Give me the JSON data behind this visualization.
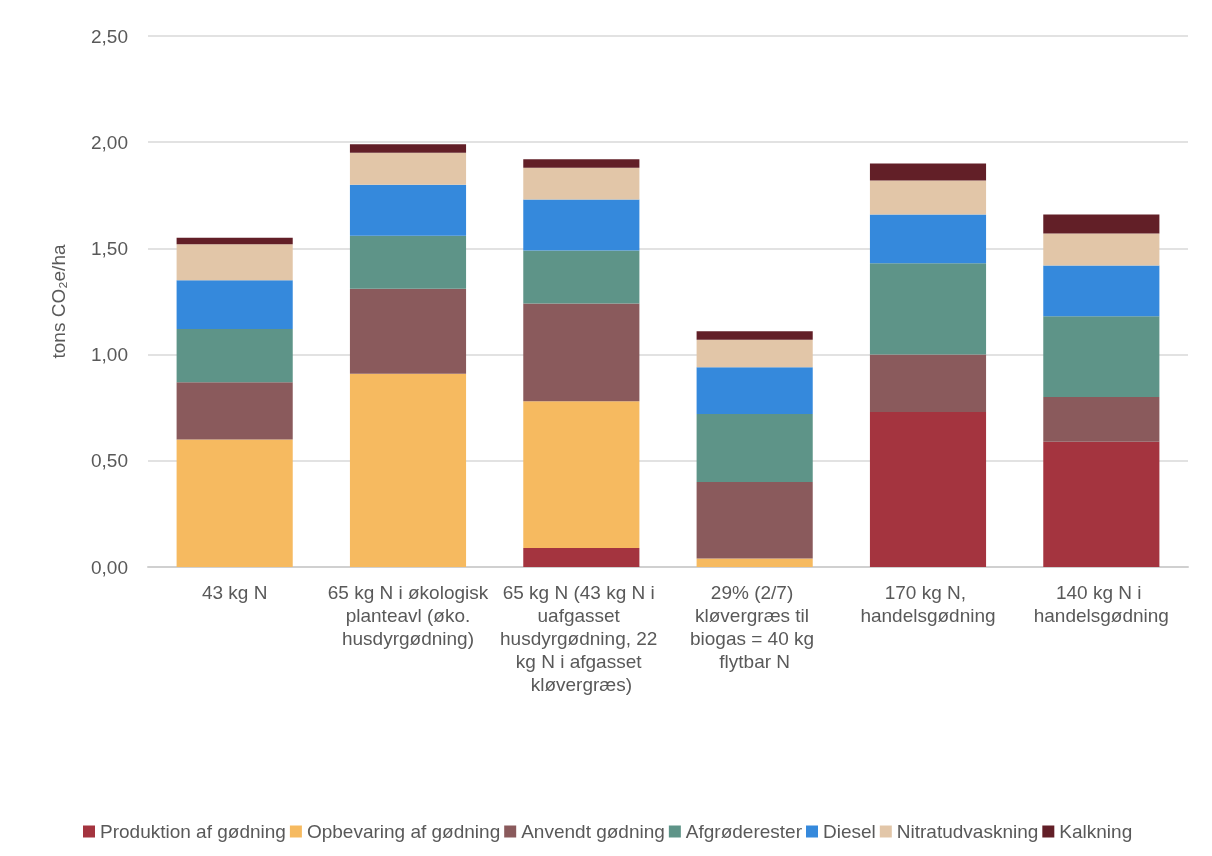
{
  "chart_data": {
    "type": "bar",
    "stacked": true,
    "ylabel": "tons CO₂e/ha",
    "categories": [
      "43 kg N",
      "65 kg N i økologisk planteavl (øko. husdyrgødning)",
      "65 kg N (43 kg N i uafgasset husdyrgødning, 22 kg N i afgasset kløvergræs)",
      "29% (2/7) kløvergræs til biogas = 40 kg flytbar N",
      "170 kg N, handelsgødning",
      "140 kg N i handelsgødning"
    ],
    "series": [
      {
        "name": "Produktion af gødning",
        "color": "#a4343f",
        "values": [
          0,
          0,
          0.09,
          0,
          0.73,
          0.59
        ]
      },
      {
        "name": "Opbevaring af gødning",
        "color": "#f6ba60",
        "values": [
          0.6,
          0.91,
          0.69,
          0.04,
          0,
          0
        ]
      },
      {
        "name": "Anvendt gødning",
        "color": "#8a5a5c",
        "values": [
          0.27,
          0.4,
          0.46,
          0.36,
          0.27,
          0.21
        ]
      },
      {
        "name": "Afgrøderester",
        "color": "#5e9488",
        "values": [
          0.25,
          0.25,
          0.25,
          0.32,
          0.43,
          0.38
        ]
      },
      {
        "name": "Diesel",
        "color": "#3589dc",
        "values": [
          0.23,
          0.24,
          0.24,
          0.22,
          0.23,
          0.24
        ]
      },
      {
        "name": "Nitratudvaskning",
        "color": "#e2c6a8",
        "values": [
          0.17,
          0.15,
          0.15,
          0.13,
          0.16,
          0.15
        ]
      },
      {
        "name": "Kalkning",
        "color": "#621f27",
        "values": [
          0.03,
          0.04,
          0.04,
          0.04,
          0.08,
          0.09
        ]
      }
    ],
    "ylim": [
      0,
      2.5
    ],
    "yticks": [
      {
        "value": 0,
        "label": "0,00"
      },
      {
        "value": 0.5,
        "label": "0,50"
      },
      {
        "value": 1,
        "label": "1,00"
      },
      {
        "value": 1.5,
        "label": "1,50"
      },
      {
        "value": 2,
        "label": "2,00"
      },
      {
        "value": 2.5,
        "label": "2,50"
      }
    ],
    "grid": "y",
    "legend": "bottom"
  }
}
